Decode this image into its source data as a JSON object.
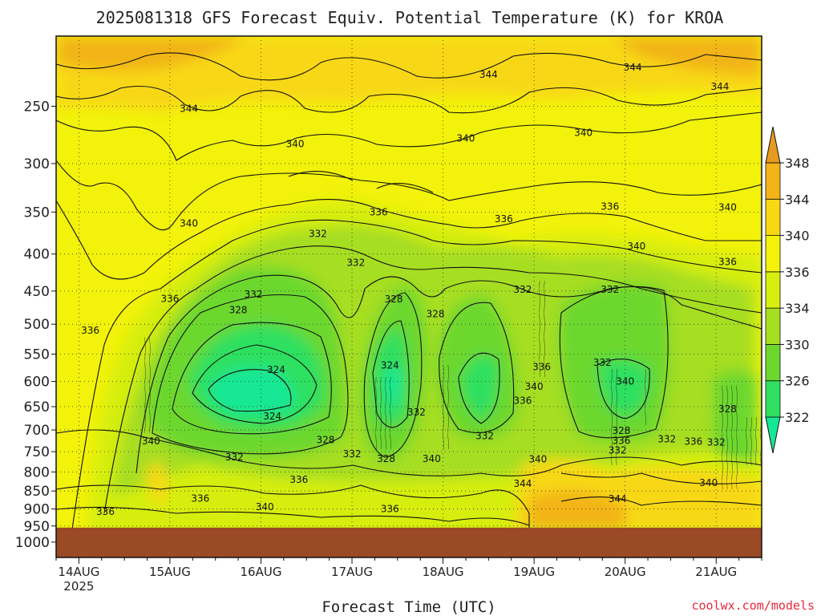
{
  "chart_data": {
    "type": "heatmap",
    "title": "2025081318 GFS Forecast Equiv. Potential Temperature (K) for KROA",
    "xlabel": "Forecast Time (UTC)",
    "ylabel": "",
    "x_ticks": [
      {
        "label": "14AUG",
        "sub": "2025",
        "t": 0
      },
      {
        "label": "15AUG",
        "sub": "",
        "t": 24
      },
      {
        "label": "16AUG",
        "sub": "",
        "t": 48
      },
      {
        "label": "17AUG",
        "sub": "",
        "t": 72
      },
      {
        "label": "18AUG",
        "sub": "",
        "t": 96
      },
      {
        "label": "19AUG",
        "sub": "",
        "t": 120
      },
      {
        "label": "20AUG",
        "sub": "",
        "t": 144
      },
      {
        "label": "21AUG",
        "sub": "",
        "t": 168
      }
    ],
    "xlim_hours": [
      -6,
      180
    ],
    "y_ticks": [
      250,
      300,
      350,
      400,
      450,
      500,
      550,
      600,
      650,
      700,
      750,
      800,
      850,
      900,
      950,
      1000
    ],
    "ylim_hpa": [
      200,
      1050
    ],
    "y_scale": "log",
    "ground_level_hpa": 955,
    "colorbar": {
      "levels": [
        322,
        326,
        330,
        334,
        336,
        340,
        344,
        348
      ],
      "colors": [
        "#15e895",
        "#2fe060",
        "#6cd82d",
        "#a6de20",
        "#d6ee10",
        "#f2f20a",
        "#f8d812",
        "#f2b418",
        "#e89a1e"
      ],
      "extend": "both"
    },
    "contour_labels": [
      {
        "value": "344",
        "t": 108,
        "p": 226
      },
      {
        "value": "344",
        "t": 146,
        "p": 221
      },
      {
        "value": "344",
        "t": 169,
        "p": 235
      },
      {
        "value": "344",
        "t": 29,
        "p": 252
      },
      {
        "value": "340",
        "t": 102,
        "p": 277
      },
      {
        "value": "340",
        "t": 133,
        "p": 272
      },
      {
        "value": "340",
        "t": 57,
        "p": 282
      },
      {
        "value": "340",
        "t": 171,
        "p": 345
      },
      {
        "value": "340",
        "t": 147,
        "p": 390
      },
      {
        "value": "340",
        "t": 29,
        "p": 363
      },
      {
        "value": "336",
        "t": 79,
        "p": 350
      },
      {
        "value": "336",
        "t": 112,
        "p": 358
      },
      {
        "value": "336",
        "t": 140,
        "p": 344
      },
      {
        "value": "336",
        "t": 171,
        "p": 410
      },
      {
        "value": "336",
        "t": 24,
        "p": 461
      },
      {
        "value": "336",
        "t": 3,
        "p": 510
      },
      {
        "value": "332",
        "t": 63,
        "p": 375
      },
      {
        "value": "332",
        "t": 73,
        "p": 411
      },
      {
        "value": "332",
        "t": 46,
        "p": 455
      },
      {
        "value": "332",
        "t": 117,
        "p": 448
      },
      {
        "value": "332",
        "t": 140,
        "p": 448
      },
      {
        "value": "328",
        "t": 42,
        "p": 478
      },
      {
        "value": "328",
        "t": 83,
        "p": 462
      },
      {
        "value": "328",
        "t": 94,
        "p": 484
      },
      {
        "value": "328",
        "t": 143,
        "p": 702
      },
      {
        "value": "328",
        "t": 171,
        "p": 655
      },
      {
        "value": "324",
        "t": 52,
        "p": 578
      },
      {
        "value": "324",
        "t": 82,
        "p": 570
      },
      {
        "value": "324",
        "t": 51,
        "p": 670
      },
      {
        "value": "336",
        "t": 122,
        "p": 573
      },
      {
        "value": "332",
        "t": 138,
        "p": 565
      },
      {
        "value": "340",
        "t": 120,
        "p": 610
      },
      {
        "value": "340",
        "t": 144,
        "p": 600
      },
      {
        "value": "336",
        "t": 117,
        "p": 638
      },
      {
        "value": "332",
        "t": 89,
        "p": 662
      },
      {
        "value": "328",
        "t": 65,
        "p": 723
      },
      {
        "value": "332",
        "t": 72,
        "p": 756
      },
      {
        "value": "332",
        "t": 41,
        "p": 763
      },
      {
        "value": "328",
        "t": 81,
        "p": 767
      },
      {
        "value": "340",
        "t": 93,
        "p": 767
      },
      {
        "value": "332",
        "t": 107,
        "p": 713
      },
      {
        "value": "336",
        "t": 143,
        "p": 724
      },
      {
        "value": "332",
        "t": 142,
        "p": 747
      },
      {
        "value": "332",
        "t": 155,
        "p": 721
      },
      {
        "value": "336",
        "t": 162,
        "p": 726
      },
      {
        "value": "332",
        "t": 168,
        "p": 728
      },
      {
        "value": "340",
        "t": 19,
        "p": 725
      },
      {
        "value": "340",
        "t": 121,
        "p": 768
      },
      {
        "value": "344",
        "t": 117,
        "p": 830
      },
      {
        "value": "344",
        "t": 142,
        "p": 872
      },
      {
        "value": "340",
        "t": 166,
        "p": 828
      },
      {
        "value": "336",
        "t": 58,
        "p": 820
      },
      {
        "value": "336",
        "t": 32,
        "p": 870
      },
      {
        "value": "340",
        "t": 49,
        "p": 894
      },
      {
        "value": "336",
        "t": 82,
        "p": 900
      },
      {
        "value": "336",
        "t": 7,
        "p": 908
      }
    ]
  },
  "watermark": {
    "text": "coolwx.com/models",
    "color": "#e8283c"
  }
}
